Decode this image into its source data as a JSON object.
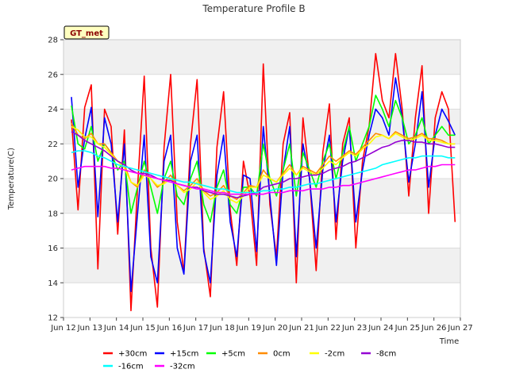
{
  "chart_data": {
    "type": "line",
    "title": "Temperature Profile B",
    "xlabel": "Time",
    "ylabel": "Temperature(C)",
    "badge": "GT_met",
    "x_range": [
      0,
      15
    ],
    "x_ticks": [
      {
        "v": 0,
        "label": "Jun 12"
      },
      {
        "v": 1,
        "label": "Jun 13"
      },
      {
        "v": 2,
        "label": "Jun 14"
      },
      {
        "v": 3,
        "label": "Jun 15"
      },
      {
        "v": 4,
        "label": "Jun 16"
      },
      {
        "v": 5,
        "label": "Jun 17"
      },
      {
        "v": 6,
        "label": "Jun 18"
      },
      {
        "v": 7,
        "label": "Jun 19"
      },
      {
        "v": 8,
        "label": "Jun 20"
      },
      {
        "v": 9,
        "label": "Jun 21"
      },
      {
        "v": 10,
        "label": "Jun 22"
      },
      {
        "v": 11,
        "label": "Jun 23"
      },
      {
        "v": 12,
        "label": "Jun 24"
      },
      {
        "v": 13,
        "label": "Jun 25"
      },
      {
        "v": 14,
        "label": "Jun 26"
      },
      {
        "v": 15,
        "label": "Jun 27"
      }
    ],
    "ylim": [
      12,
      28
    ],
    "y_ticks": [
      12,
      14,
      16,
      18,
      20,
      22,
      24,
      26,
      28
    ],
    "grid": "horizontal bands",
    "legend_placement": "bottom",
    "x": [
      0.3,
      0.55,
      0.8,
      1.05,
      1.3,
      1.55,
      1.8,
      2.05,
      2.3,
      2.55,
      2.8,
      3.05,
      3.3,
      3.55,
      3.8,
      4.05,
      4.3,
      4.55,
      4.8,
      5.05,
      5.3,
      5.55,
      5.8,
      6.05,
      6.3,
      6.55,
      6.8,
      7.05,
      7.3,
      7.55,
      7.8,
      8.05,
      8.3,
      8.55,
      8.8,
      9.05,
      9.3,
      9.55,
      9.8,
      10.05,
      10.3,
      10.55,
      10.8,
      11.05,
      11.3,
      11.55,
      11.8,
      12.05,
      12.3,
      12.55,
      12.8,
      13.05,
      13.3,
      13.55,
      13.8,
      14.05,
      14.3,
      14.55,
      14.8
    ],
    "series": [
      {
        "name": "+30cm",
        "color": "#ff0000",
        "values": [
          23.4,
          18.2,
          24.1,
          25.4,
          14.8,
          24.0,
          23.0,
          16.8,
          22.8,
          12.4,
          19.5,
          25.9,
          16.0,
          12.6,
          21.8,
          26.0,
          17.5,
          14.6,
          22.0,
          25.7,
          16.0,
          13.2,
          21.8,
          25.0,
          18.2,
          15.0,
          21.0,
          19.0,
          15.0,
          26.6,
          18.5,
          15.5,
          22.0,
          23.8,
          14.0,
          23.5,
          20.0,
          14.7,
          21.5,
          24.3,
          16.5,
          22.0,
          23.5,
          16.0,
          21.0,
          23.0,
          27.2,
          24.5,
          23.5,
          27.2,
          24.0,
          19.0,
          23.5,
          26.5,
          18.0,
          23.5,
          25.0,
          24.0,
          17.5
        ]
      },
      {
        "name": "+15cm",
        "color": "#0000ff",
        "values": [
          24.7,
          19.5,
          22.3,
          24.1,
          17.8,
          23.5,
          22.0,
          17.5,
          22.0,
          13.5,
          18.0,
          22.5,
          15.5,
          14.0,
          21.0,
          22.5,
          16.0,
          14.5,
          21.0,
          22.5,
          15.8,
          14.0,
          20.2,
          22.5,
          17.5,
          15.5,
          20.2,
          20.0,
          15.8,
          23.0,
          19.0,
          15.0,
          20.5,
          23.0,
          15.5,
          22.0,
          20.0,
          16.0,
          20.5,
          22.5,
          17.5,
          21.0,
          23.0,
          17.5,
          20.5,
          22.5,
          24.0,
          23.5,
          22.5,
          25.8,
          23.5,
          19.8,
          22.0,
          25.0,
          19.5,
          22.5,
          24.0,
          23.3,
          22.5
        ]
      },
      {
        "name": "+5cm",
        "color": "#00ff00",
        "values": [
          24.2,
          22.0,
          21.7,
          23.0,
          21.0,
          22.0,
          21.5,
          20.5,
          21.0,
          18.0,
          19.5,
          21.0,
          19.5,
          18.0,
          20.0,
          21.0,
          19.0,
          18.5,
          20.0,
          21.0,
          18.5,
          17.5,
          19.5,
          20.5,
          18.5,
          18.0,
          19.5,
          19.5,
          19.0,
          22.0,
          20.0,
          19.0,
          20.5,
          22.0,
          19.0,
          21.5,
          20.5,
          19.5,
          21.0,
          22.0,
          20.0,
          21.5,
          23.0,
          21.0,
          22.0,
          23.0,
          24.8,
          24.0,
          23.0,
          24.5,
          23.5,
          22.0,
          22.5,
          23.5,
          22.0,
          22.5,
          23.0,
          22.5,
          22.5
        ]
      },
      {
        "name": "0cm",
        "color": "#ff8c00",
        "values": [
          23.2,
          22.5,
          22.3,
          22.6,
          22.0,
          22.0,
          21.5,
          21.0,
          20.8,
          19.8,
          19.5,
          20.5,
          20.0,
          19.5,
          19.8,
          20.2,
          19.6,
          19.3,
          19.6,
          20.0,
          19.3,
          19.0,
          19.2,
          19.6,
          19.0,
          18.8,
          19.2,
          19.6,
          19.5,
          20.5,
          20.0,
          19.8,
          20.3,
          20.8,
          20.2,
          20.7,
          20.5,
          20.3,
          20.8,
          21.3,
          21.0,
          21.3,
          21.6,
          21.4,
          21.8,
          22.2,
          22.6,
          22.5,
          22.3,
          22.7,
          22.5,
          22.3,
          22.4,
          22.6,
          22.3,
          22.3,
          22.2,
          22.0,
          22.0
        ]
      },
      {
        "name": "-2cm",
        "color": "#ffff00",
        "values": [
          23.0,
          22.8,
          22.4,
          22.4,
          22.0,
          21.8,
          21.4,
          21.0,
          20.6,
          19.8,
          19.6,
          20.2,
          20.0,
          19.6,
          19.7,
          20.0,
          19.6,
          19.2,
          19.4,
          19.8,
          19.2,
          18.8,
          19.0,
          19.3,
          18.8,
          18.6,
          19.0,
          19.5,
          19.5,
          20.2,
          20.0,
          19.8,
          20.2,
          20.6,
          20.2,
          20.6,
          20.4,
          20.2,
          20.6,
          21.0,
          20.8,
          21.2,
          21.5,
          21.3,
          21.7,
          22.0,
          22.4,
          22.5,
          22.3,
          22.6,
          22.4,
          22.2,
          22.3,
          22.5,
          22.2,
          22.2,
          22.1,
          22.0,
          22.0
        ]
      },
      {
        "name": "-8cm",
        "color": "#9400d3",
        "values": [
          22.7,
          22.5,
          22.2,
          22.0,
          21.8,
          21.6,
          21.3,
          21.0,
          20.8,
          20.5,
          20.3,
          20.3,
          20.2,
          20.0,
          19.9,
          19.9,
          19.7,
          19.6,
          19.5,
          19.5,
          19.3,
          19.2,
          19.1,
          19.1,
          19.0,
          18.9,
          19.0,
          19.1,
          19.2,
          19.5,
          19.6,
          19.7,
          19.8,
          20.0,
          20.0,
          20.1,
          20.2,
          20.2,
          20.3,
          20.5,
          20.6,
          20.7,
          20.9,
          21.0,
          21.2,
          21.4,
          21.6,
          21.8,
          21.9,
          22.1,
          22.2,
          22.2,
          22.1,
          22.1,
          22.0,
          22.0,
          21.9,
          21.8,
          21.8
        ]
      },
      {
        "name": "-16cm",
        "color": "#00ffff",
        "values": [
          21.5,
          21.6,
          21.6,
          21.5,
          21.3,
          21.2,
          21.0,
          20.8,
          20.7,
          20.6,
          20.5,
          20.4,
          20.3,
          20.2,
          20.1,
          20.0,
          19.9,
          19.8,
          19.8,
          19.7,
          19.6,
          19.5,
          19.4,
          19.4,
          19.3,
          19.2,
          19.2,
          19.2,
          19.2,
          19.3,
          19.3,
          19.4,
          19.4,
          19.5,
          19.5,
          19.6,
          19.7,
          19.7,
          19.8,
          19.9,
          20.0,
          20.1,
          20.2,
          20.3,
          20.4,
          20.5,
          20.6,
          20.8,
          20.9,
          21.0,
          21.1,
          21.2,
          21.2,
          21.3,
          21.3,
          21.3,
          21.3,
          21.2,
          21.2
        ]
      },
      {
        "name": "-32cm",
        "color": "#ff00ff",
        "values": [
          20.5,
          20.6,
          20.7,
          20.7,
          20.7,
          20.7,
          20.6,
          20.6,
          20.5,
          20.4,
          20.3,
          20.2,
          20.1,
          20.0,
          19.9,
          19.8,
          19.7,
          19.6,
          19.5,
          19.4,
          19.4,
          19.3,
          19.2,
          19.2,
          19.1,
          19.1,
          19.1,
          19.1,
          19.1,
          19.1,
          19.2,
          19.2,
          19.2,
          19.3,
          19.3,
          19.3,
          19.4,
          19.4,
          19.4,
          19.5,
          19.5,
          19.6,
          19.6,
          19.7,
          19.8,
          19.9,
          20.0,
          20.1,
          20.2,
          20.3,
          20.4,
          20.5,
          20.5,
          20.6,
          20.7,
          20.7,
          20.8,
          20.8,
          20.8
        ]
      }
    ]
  }
}
